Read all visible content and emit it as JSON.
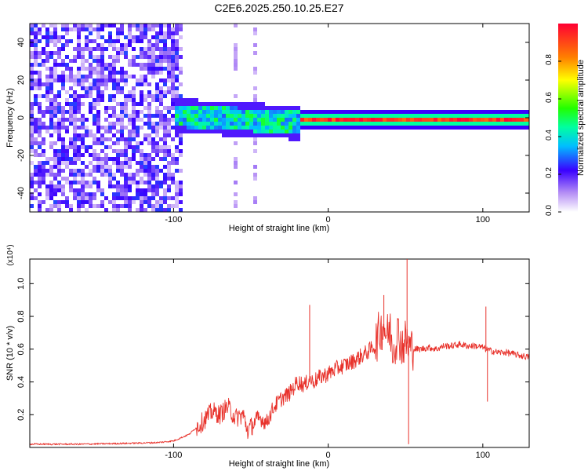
{
  "figure": {
    "title": "C2E6.2025.250.10.25.E27"
  },
  "colors": {
    "snr_line": "#e8312a",
    "frame": "#000000"
  },
  "chart_data": [
    {
      "type": "heatmap",
      "xlabel": "Height of straight line (km)",
      "ylabel": "Frequency (Hz)",
      "xlim": [
        -193,
        130
      ],
      "ylim": [
        -50,
        50
      ],
      "xticks": [
        -100,
        0,
        100
      ],
      "xtick_labels": [
        "-100",
        "0",
        "100"
      ],
      "yticks": [
        -40,
        -20,
        0,
        20,
        40
      ],
      "ytick_labels": [
        "-40",
        "-20",
        "0",
        "20",
        "40"
      ],
      "colorbar": {
        "label": "Normalized spectral amplitude",
        "range": [
          0,
          1
        ],
        "ticks": [
          0,
          0.2,
          0.4,
          0.6,
          0.8
        ],
        "tick_labels": [
          "0.0",
          "0.2",
          "0.4",
          "0.6",
          "0.8"
        ],
        "colormap": "rainbow"
      },
      "grid": false
    },
    {
      "type": "line",
      "xlabel": "Height of straight line (km)",
      "ylabel": "SNR (10 * v/v)",
      "y_multiplier": "(x10⁴)",
      "xlim": [
        -193,
        130
      ],
      "ylim": [
        0,
        1.15
      ],
      "xticks": [
        -100,
        0,
        100
      ],
      "xtick_labels": [
        "-100",
        "0",
        "100"
      ],
      "yticks": [
        0.2,
        0.4,
        0.6,
        0.8,
        1.0
      ],
      "ytick_labels": [
        "0.2",
        "0.4",
        "0.6",
        "0.8",
        "1.0"
      ],
      "grid": false,
      "series": [
        {
          "x": [
            -193,
            -160,
            -130,
            -110,
            -100,
            -90,
            -82,
            -75,
            -70,
            -65,
            -60,
            -55,
            -52,
            -48,
            -44,
            -40,
            -35,
            -30,
            -25,
            -20,
            -15,
            -12,
            -10,
            -5,
            0,
            5,
            10,
            15,
            20,
            25,
            30,
            33,
            36,
            38,
            40,
            42,
            45,
            48,
            50,
            52,
            55,
            60,
            65,
            70,
            75,
            80,
            85,
            90,
            95,
            100,
            102,
            105,
            110,
            115,
            120,
            125,
            130
          ],
          "y": [
            0.02,
            0.02,
            0.025,
            0.03,
            0.04,
            0.08,
            0.15,
            0.22,
            0.2,
            0.25,
            0.18,
            0.2,
            0.1,
            0.15,
            0.18,
            0.15,
            0.25,
            0.3,
            0.33,
            0.4,
            0.38,
            0.42,
            0.4,
            0.43,
            0.45,
            0.48,
            0.5,
            0.52,
            0.55,
            0.58,
            0.62,
            0.7,
            0.75,
            0.68,
            0.72,
            0.6,
            0.7,
            0.62,
            0.65,
            0.62,
            0.6,
            0.6,
            0.61,
            0.6,
            0.62,
            0.62,
            0.63,
            0.62,
            0.62,
            0.61,
            0.6,
            0.59,
            0.58,
            0.58,
            0.57,
            0.56,
            0.55
          ],
          "spikes": [
            {
              "x": -12,
              "y": 0.87
            },
            {
              "x": 36,
              "y": 0.93
            },
            {
              "x": 51,
              "y": 1.16
            },
            {
              "x": 52,
              "y": 0.02
            },
            {
              "x": 102,
              "y": 0.86
            },
            {
              "x": 103,
              "y": 0.28
            }
          ]
        }
      ]
    }
  ]
}
